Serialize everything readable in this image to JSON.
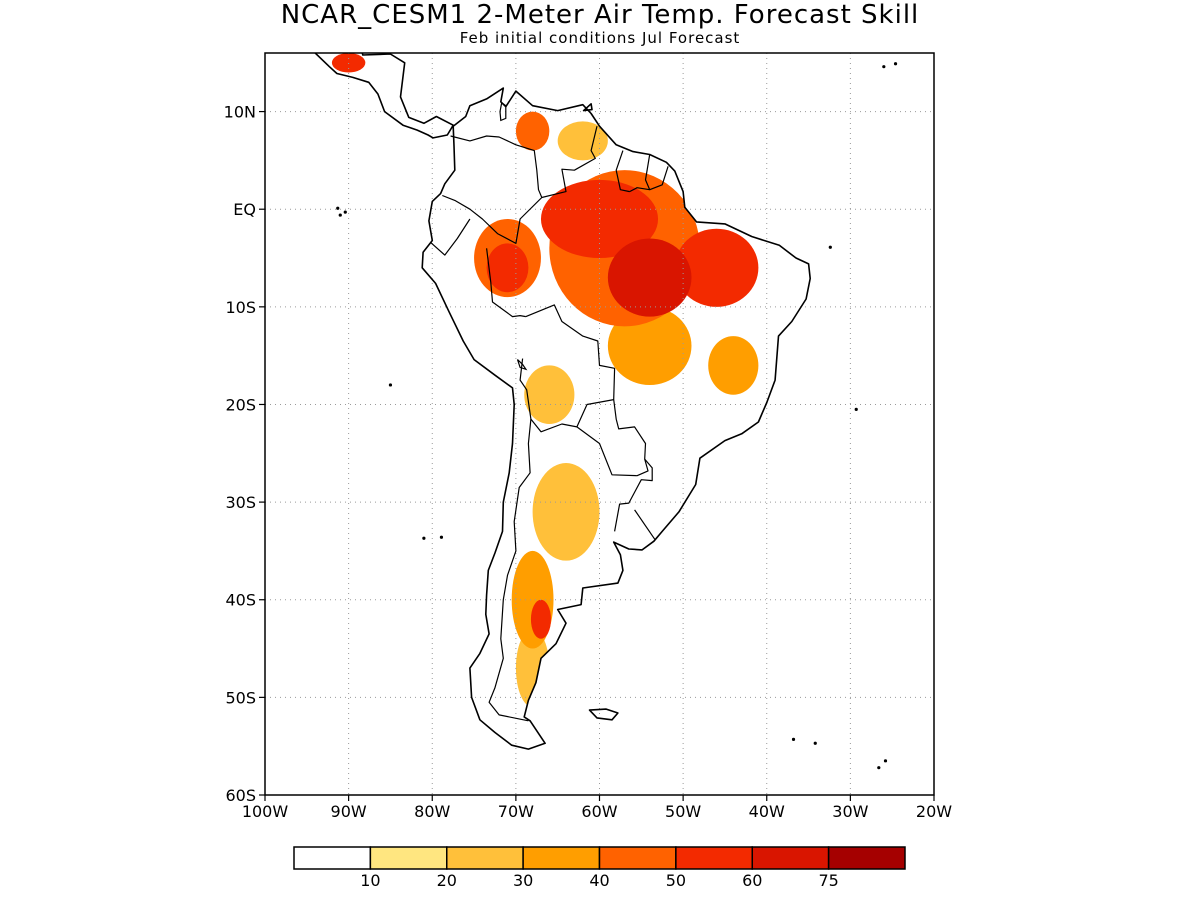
{
  "title": "NCAR_CESM1 2-Meter Air Temp. Forecast Skill",
  "subtitle": "Feb initial conditions  Jul Forecast",
  "map": {
    "lon_range": [
      -100,
      -20
    ],
    "lat_range": [
      -60,
      16
    ],
    "lat_ticks": [
      {
        "value": 10,
        "label": "10N"
      },
      {
        "value": 0,
        "label": "EQ"
      },
      {
        "value": -10,
        "label": "10S"
      },
      {
        "value": -20,
        "label": "20S"
      },
      {
        "value": -30,
        "label": "30S"
      },
      {
        "value": -40,
        "label": "40S"
      },
      {
        "value": -50,
        "label": "50S"
      },
      {
        "value": -60,
        "label": "60S"
      }
    ],
    "lon_ticks": [
      {
        "value": -100,
        "label": "100W"
      },
      {
        "value": -90,
        "label": "90W"
      },
      {
        "value": -80,
        "label": "80W"
      },
      {
        "value": -70,
        "label": "70W"
      },
      {
        "value": -60,
        "label": "60W"
      },
      {
        "value": -50,
        "label": "50W"
      },
      {
        "value": -40,
        "label": "40W"
      },
      {
        "value": -30,
        "label": "30W"
      },
      {
        "value": -20,
        "label": "20W"
      }
    ],
    "gridlines": "dotted"
  },
  "colorbar": {
    "colors": [
      "#ffffff",
      "#ffe680",
      "#ffc03a",
      "#ff9e00",
      "#ff6200",
      "#f32a00",
      "#d91500",
      "#a50000"
    ],
    "labels": [
      "10",
      "20",
      "30",
      "40",
      "50",
      "60",
      "75"
    ]
  },
  "skill_regions": [
    {
      "level": 4,
      "lon": -57,
      "lat": -4,
      "rx": 9,
      "ry": 8
    },
    {
      "level": 5,
      "lon": -60,
      "lat": -1,
      "rx": 7,
      "ry": 4
    },
    {
      "level": 5,
      "lon": -46,
      "lat": -6,
      "rx": 5,
      "ry": 4
    },
    {
      "level": 6,
      "lon": -54,
      "lat": -7,
      "rx": 5,
      "ry": 4
    },
    {
      "level": 4,
      "lon": -71,
      "lat": -5,
      "rx": 4,
      "ry": 4
    },
    {
      "level": 5,
      "lon": -71,
      "lat": -6,
      "rx": 2.5,
      "ry": 2.5
    },
    {
      "level": 3,
      "lon": -54,
      "lat": -14,
      "rx": 5,
      "ry": 4
    },
    {
      "level": 3,
      "lon": -44,
      "lat": -16,
      "rx": 3,
      "ry": 3
    },
    {
      "level": 2,
      "lon": -62,
      "lat": 7,
      "rx": 3,
      "ry": 2
    },
    {
      "level": 4,
      "lon": -68,
      "lat": 8,
      "rx": 2,
      "ry": 2
    },
    {
      "level": 2,
      "lon": -64,
      "lat": -31,
      "rx": 4,
      "ry": 5
    },
    {
      "level": 3,
      "lon": -68,
      "lat": -40,
      "rx": 2.5,
      "ry": 5
    },
    {
      "level": 5,
      "lon": -67,
      "lat": -42,
      "rx": 1.2,
      "ry": 2
    },
    {
      "level": 2,
      "lon": -68,
      "lat": -47,
      "rx": 2,
      "ry": 4
    },
    {
      "level": 2,
      "lon": -66,
      "lat": -19,
      "rx": 3,
      "ry": 3
    },
    {
      "level": 5,
      "lon": -90,
      "lat": 15,
      "rx": 2,
      "ry": 1
    }
  ]
}
